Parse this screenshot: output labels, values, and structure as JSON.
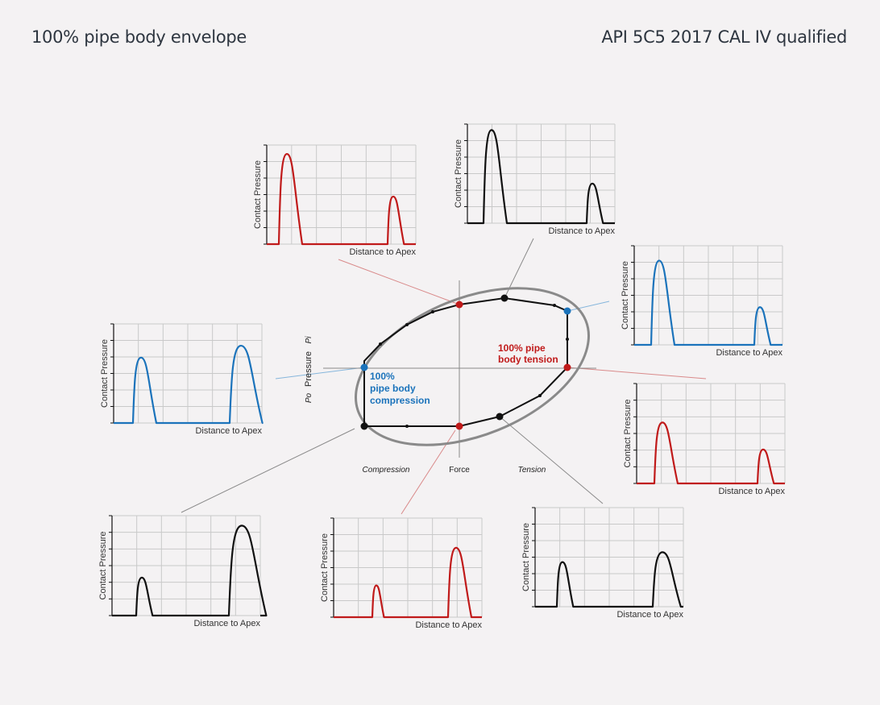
{
  "header": {
    "left_title": "100% pipe body envelope",
    "right_title": "API 5C5 2017 CAL IV qualified"
  },
  "colors": {
    "background": "#f4f2f3",
    "red": "#c01a1a",
    "blue": "#1b73bb",
    "black": "#111111",
    "grid": "#c9c9c9",
    "envelope": "#8a8a8a"
  },
  "diagram": {
    "x_axis_left": "Compression",
    "x_axis_center": "Force",
    "x_axis_right": "Tension",
    "y_axis_top": "Pi",
    "y_axis_center": "Pressure",
    "y_axis_bottom": "Po",
    "label_tension": [
      "100% pipe",
      "body tension"
    ],
    "label_compression": [
      "100%",
      "pipe body",
      "compression"
    ]
  },
  "chart_data": [
    {
      "type": "line",
      "ylabel": "Contact Pressure",
      "xlabel": "Distance to Apex",
      "color": "red"
    },
    {
      "type": "line",
      "ylabel": "Contact Pressure",
      "xlabel": "Distance to Apex",
      "color": "black"
    },
    {
      "type": "line",
      "ylabel": "Contact Pressure",
      "xlabel": "Distance to Apex",
      "color": "blue"
    },
    {
      "type": "line",
      "ylabel": "Contact Pressure",
      "xlabel": "Distance to Apex",
      "color": "blue"
    },
    {
      "type": "line",
      "ylabel": "Contact Pressure",
      "xlabel": "Distance to Apex",
      "color": "red"
    },
    {
      "type": "line",
      "ylabel": "Contact Pressure",
      "xlabel": "Distance to Apex",
      "color": "black"
    },
    {
      "type": "line",
      "ylabel": "Contact Pressure",
      "xlabel": "Distance to Apex",
      "color": "red"
    },
    {
      "type": "line",
      "ylabel": "Contact Pressure",
      "xlabel": "Distance to Apex",
      "color": "black"
    }
  ]
}
